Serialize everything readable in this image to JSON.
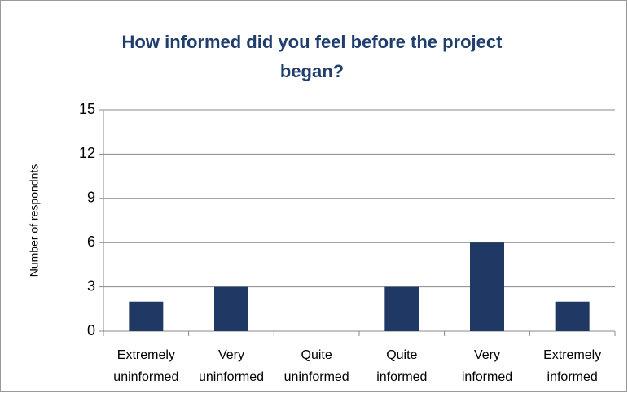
{
  "chart_data": {
    "type": "bar",
    "title": "How informed did you feel before the project began?",
    "y_label": "Number of respondnts",
    "categories": [
      "Extremely uninformed",
      "Very uninformed",
      "Quite uninformed",
      "Quite informed",
      "Very informed",
      "Extremely informed"
    ],
    "values": [
      2,
      3,
      0,
      3,
      6,
      2
    ],
    "color": "#1f3864",
    "ylim": [
      0,
      15
    ],
    "yticks": [
      0,
      3,
      6,
      9,
      12,
      15
    ],
    "grid": true
  }
}
